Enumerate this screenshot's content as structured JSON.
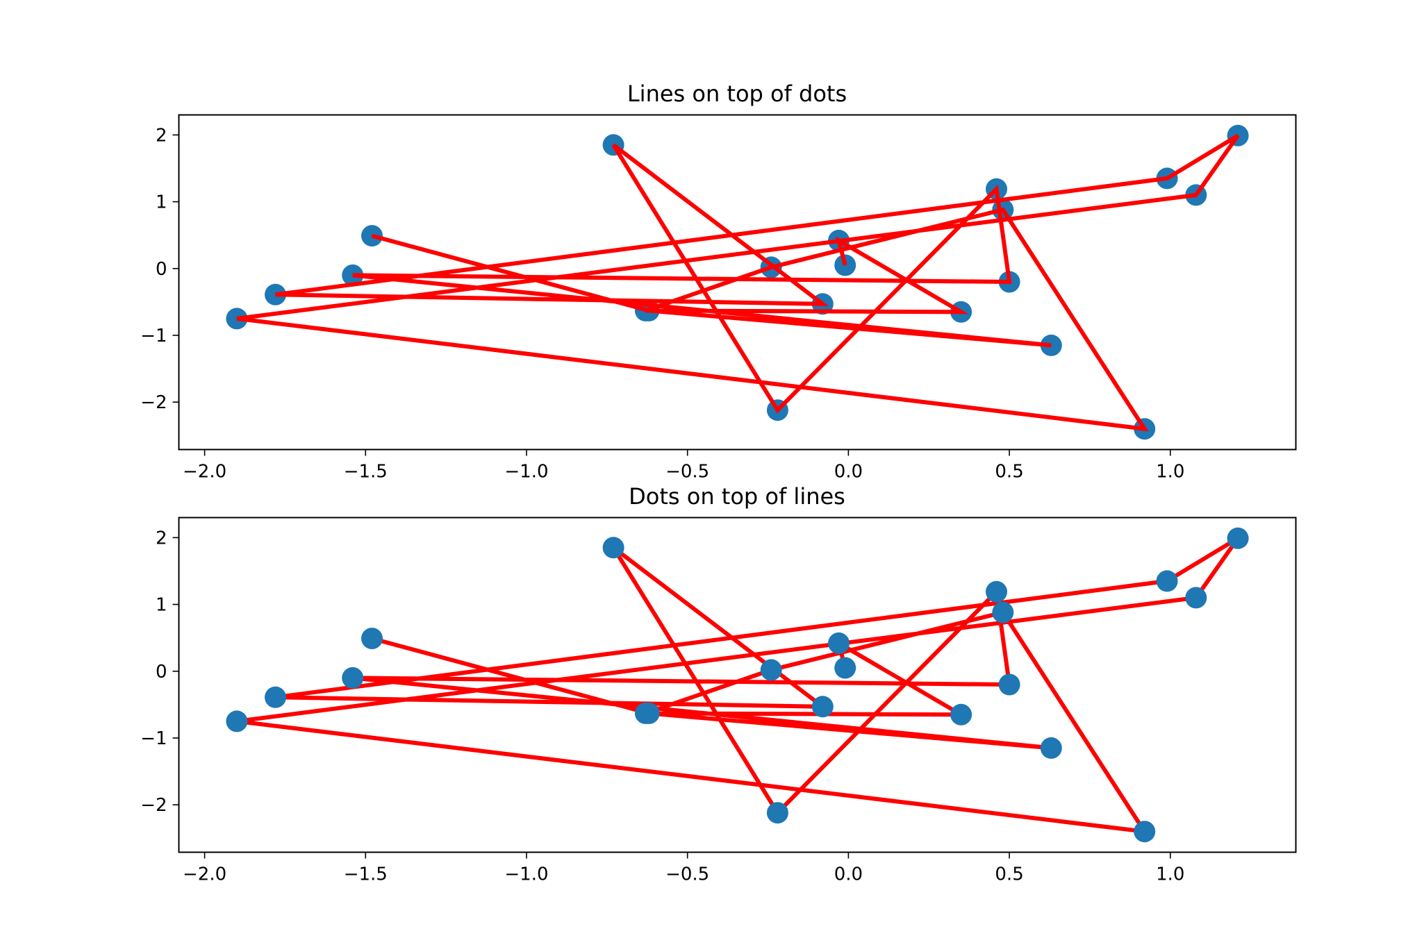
{
  "colors": {
    "line": "#ff0000",
    "dots": "#1f77b4",
    "frame": "#000000",
    "background": "#ffffff"
  },
  "chart_data": [
    {
      "type": "scatter+line",
      "title": "Lines on top of dots",
      "layering": "lines-over-dots",
      "xlim": [
        -2.08,
        1.39
      ],
      "ylim": [
        -2.71,
        2.3
      ],
      "xticks": [
        -2.0,
        -1.5,
        -1.0,
        -0.5,
        0.0,
        0.5,
        1.0
      ],
      "xtick_labels": [
        "−2.0",
        "−1.5",
        "−1.0",
        "−0.5",
        "0.0",
        "0.5",
        "1.0"
      ],
      "yticks": [
        -2,
        -1,
        0,
        1,
        2
      ],
      "ytick_labels": [
        "−2",
        "−1",
        "0",
        "1",
        "2"
      ],
      "xlabel": "",
      "ylabel": "",
      "line_color": "#ff0000",
      "marker_color": "#1f77b4"
    },
    {
      "type": "scatter+line",
      "title": "Dots on top of lines",
      "layering": "dots-over-lines",
      "xlim": [
        -2.08,
        1.39
      ],
      "ylim": [
        -2.71,
        2.3
      ],
      "xticks": [
        -2.0,
        -1.5,
        -1.0,
        -0.5,
        0.0,
        0.5,
        1.0
      ],
      "xtick_labels": [
        "−2.0",
        "−1.5",
        "−1.0",
        "−0.5",
        "0.0",
        "0.5",
        "1.0"
      ],
      "yticks": [
        -2,
        -1,
        0,
        1,
        2
      ],
      "ytick_labels": [
        "−2",
        "−1",
        "0",
        "1",
        "2"
      ],
      "xlabel": "",
      "ylabel": "",
      "line_color": "#ff0000",
      "marker_color": "#1f77b4"
    }
  ],
  "series": {
    "x": [
      -1.48,
      -0.62,
      0.63,
      -1.54,
      0.5,
      0.46,
      -0.22,
      -0.73,
      -0.08,
      -1.78,
      0.99,
      1.21,
      1.08,
      -1.9,
      0.92,
      0.48,
      -0.24,
      -0.63,
      0.35,
      -0.03,
      -0.01
    ],
    "y": [
      0.49,
      -0.63,
      -1.15,
      -0.1,
      -0.2,
      1.19,
      -2.12,
      1.85,
      -0.53,
      -0.39,
      1.35,
      1.99,
      1.1,
      -0.75,
      -2.4,
      0.88,
      0.02,
      -0.63,
      -0.65,
      0.42,
      0.05
    ]
  }
}
